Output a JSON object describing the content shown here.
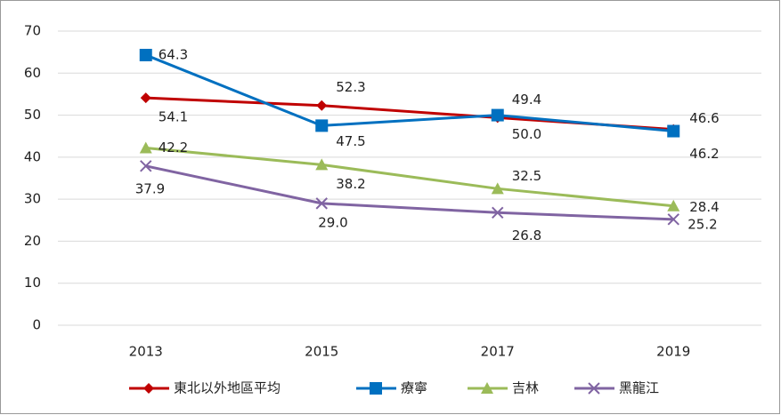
{
  "chart_data": {
    "type": "line",
    "categories": [
      "2013",
      "2015",
      "2017",
      "2019"
    ],
    "series": [
      {
        "name": "東北以外地區平均",
        "color": "#c00000",
        "marker": "diamond",
        "values": [
          54.1,
          52.3,
          49.4,
          46.6
        ],
        "value_labels": [
          "54.1",
          "52.3",
          "49.4",
          "46.6"
        ]
      },
      {
        "name": "療寧",
        "color": "#0070c0",
        "marker": "square",
        "values": [
          64.3,
          47.5,
          50.0,
          46.2
        ],
        "value_labels": [
          "64.3",
          "47.5",
          "50.0",
          "46.2"
        ]
      },
      {
        "name": "吉林",
        "color": "#9bbb59",
        "marker": "triangle",
        "values": [
          42.2,
          38.2,
          32.5,
          28.4
        ],
        "value_labels": [
          "42.2",
          "38.2",
          "32.5",
          "28.4"
        ]
      },
      {
        "name": "黑龍江",
        "color": "#8064a2",
        "marker": "x",
        "values": [
          37.9,
          29.0,
          26.8,
          25.2
        ],
        "value_labels": [
          "37.9",
          "29.0",
          "26.8",
          "25.2"
        ]
      }
    ],
    "ylim": [
      0,
      70
    ],
    "yticks": [
      0,
      10,
      20,
      30,
      40,
      50,
      60,
      70
    ],
    "grid": true,
    "legend": "bottom"
  }
}
